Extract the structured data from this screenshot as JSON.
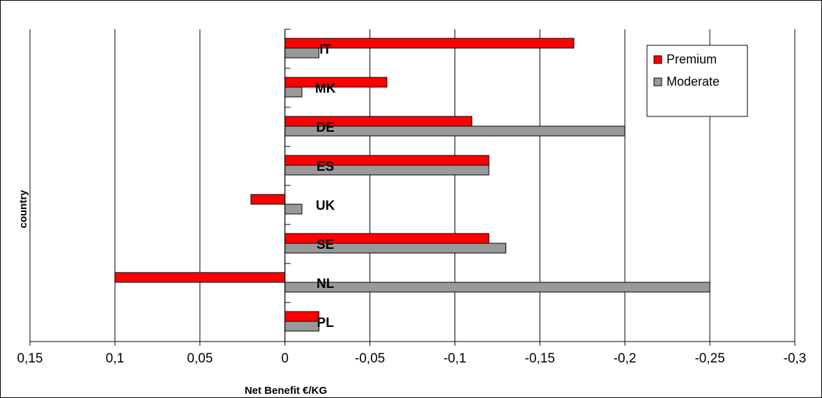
{
  "chart_data": {
    "type": "bar",
    "orientation": "horizontal",
    "categories": [
      "IT",
      "MK",
      "DE",
      "ES",
      "UK",
      "SE",
      "NL",
      "PL"
    ],
    "series": [
      {
        "name": "Premium",
        "color": "#ff0000",
        "values": [
          -0.17,
          -0.06,
          -0.11,
          -0.12,
          0.02,
          -0.12,
          0.1,
          -0.02
        ]
      },
      {
        "name": "Moderate",
        "color": "#999999",
        "values": [
          -0.02,
          -0.01,
          -0.2,
          -0.12,
          -0.01,
          -0.13,
          -0.25,
          -0.02
        ]
      }
    ],
    "xlabel": "Net Benefit €/KG",
    "ylabel": "country",
    "xlim": [
      0.15,
      -0.3
    ],
    "x_reversed": true,
    "x_ticks": [
      0.15,
      0.1,
      0.05,
      0,
      -0.05,
      -0.1,
      -0.15,
      -0.2,
      -0.25,
      -0.3
    ],
    "x_tick_labels": [
      "0,15",
      "0,1",
      "0,05",
      "0",
      "-0,05",
      "-0,1",
      "-0,15",
      "-0,2",
      "-0,25",
      "-0,3"
    ],
    "grid": "vertical",
    "legend_position": "top-right"
  }
}
